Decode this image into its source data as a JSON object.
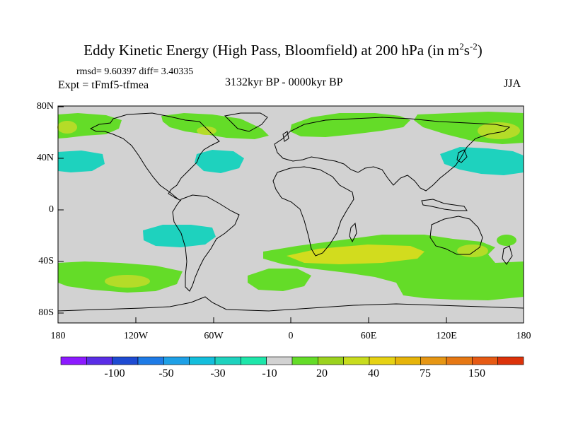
{
  "title": {
    "main": "Eddy Kinetic Energy (High Pass, Bloomfield) at 200 hPa (in m",
    "sup1": "2",
    "mid": "s",
    "sup2": "-2",
    "end": ")"
  },
  "stats": "rmsd= 9.60397 diff= 3.40335",
  "experiment": "Expt = tFmf5-tfmea",
  "period": "3132kyr BP - 0000kyr BP",
  "season": "JJA",
  "y_axis_labels": [
    "80N",
    "40N",
    "0",
    "40S",
    "80S"
  ],
  "x_axis_labels": [
    "180",
    "120W",
    "60W",
    "0",
    "60E",
    "120E",
    "180"
  ],
  "colorbar": {
    "colors": [
      "#8c1aff",
      "#5a2de6",
      "#1e4bd2",
      "#1e7be6",
      "#1ea0e6",
      "#14bedc",
      "#1ed2be",
      "#1ee6aa",
      "#d2d2d2",
      "#64dc28",
      "#9bd21e",
      "#c8dc1e",
      "#e6d214",
      "#e6b40a",
      "#e69614",
      "#e67814",
      "#e65a14",
      "#dc320a"
    ],
    "labels": [
      "-100",
      "-50",
      "-30",
      "-10",
      "20",
      "40",
      "75",
      "150"
    ]
  },
  "map_colors": {
    "land_ocean": "#d2d2d2",
    "anomaly_green": "#64dc28",
    "anomaly_yellowgreen": "#b4dc28",
    "anomaly_yellow": "#d2dc1e",
    "anomaly_teal": "#1ed2be",
    "coast": "#000000"
  }
}
